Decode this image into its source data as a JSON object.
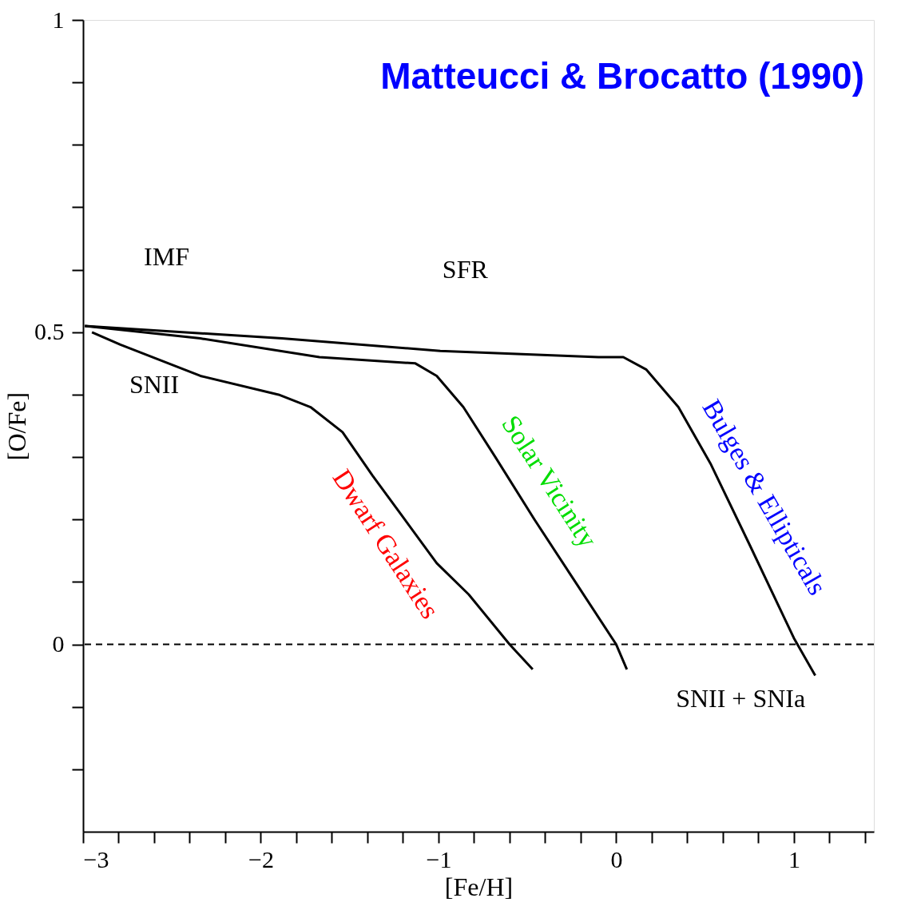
{
  "chart_data": {
    "type": "line",
    "title": "Matteucci & Brocatto (1990)",
    "xlabel": "[Fe/H]",
    "ylabel": "[O/Fe]",
    "xlim": [
      -3,
      1.45
    ],
    "ylim": [
      -0.3,
      1
    ],
    "xticks": [
      {
        "value": -3,
        "label": "−3"
      },
      {
        "value": -2.8,
        "label": null
      },
      {
        "value": -2.6,
        "label": null
      },
      {
        "value": -2.4,
        "label": null
      },
      {
        "value": -2.2,
        "label": null
      },
      {
        "value": -2,
        "label": "−2"
      },
      {
        "value": -1.8,
        "label": null
      },
      {
        "value": -1.6,
        "label": null
      },
      {
        "value": -1.4,
        "label": null
      },
      {
        "value": -1.2,
        "label": null
      },
      {
        "value": -1,
        "label": "−1"
      },
      {
        "value": -0.8,
        "label": null
      },
      {
        "value": -0.6,
        "label": null
      },
      {
        "value": -0.4,
        "label": null
      },
      {
        "value": -0.2,
        "label": null
      },
      {
        "value": 0,
        "label": "0"
      },
      {
        "value": 0.2,
        "label": null
      },
      {
        "value": 0.4,
        "label": null
      },
      {
        "value": 0.6,
        "label": null
      },
      {
        "value": 0.8,
        "label": null
      },
      {
        "value": 1,
        "label": "1"
      },
      {
        "value": 1.2,
        "label": null
      },
      {
        "value": 1.4,
        "label": null
      }
    ],
    "yticks": [
      {
        "value": -0.2,
        "label": null
      },
      {
        "value": -0.1,
        "label": null
      },
      0,
      {
        "value": 0.1,
        "label": null
      },
      {
        "value": 0.2,
        "label": null
      },
      {
        "value": 0.3,
        "label": null
      },
      {
        "value": 0.4,
        "label": null
      },
      0.5,
      {
        "value": 0.6,
        "label": null
      },
      {
        "value": 0.7,
        "label": null
      },
      {
        "value": 0.8,
        "label": null
      },
      {
        "value": 0.9,
        "label": null
      },
      1
    ],
    "grid": false,
    "legend": false,
    "marker": "none",
    "line_style": "solid",
    "series": [
      {
        "name": "Dwarf Galaxies",
        "color": "#000000",
        "x": [
          -2.95,
          -2.79,
          -2.34,
          -1.9,
          -1.72,
          -1.54,
          -1.37,
          -1.19,
          -1.01,
          -0.83,
          -0.6,
          -0.47
        ],
        "values": [
          0.5,
          0.48,
          0.43,
          0.4,
          0.38,
          0.34,
          0.27,
          0.2,
          0.13,
          0.08,
          0.0,
          -0.04
        ]
      },
      {
        "name": "Solar Vicinity",
        "color": "#000000",
        "x": [
          -2.99,
          -2.34,
          -1.67,
          -1.13,
          -1.01,
          -0.86,
          -0.68,
          -0.46,
          -0.23,
          0.0,
          0.06
        ],
        "values": [
          0.51,
          0.49,
          0.46,
          0.45,
          0.43,
          0.38,
          0.3,
          0.2,
          0.1,
          0.0,
          -0.04
        ]
      },
      {
        "name": "Bulges & Ellipticals",
        "color": "#000000",
        "x": [
          -2.99,
          -1.88,
          -0.99,
          -0.1,
          0.04,
          0.17,
          0.35,
          0.53,
          0.75,
          1.0,
          1.12
        ],
        "values": [
          0.51,
          0.49,
          0.47,
          0.46,
          0.46,
          0.44,
          0.38,
          0.29,
          0.16,
          0.01,
          -0.05
        ]
      }
    ],
    "ref_lines": [
      {
        "axis": "y",
        "value": 0,
        "line_style": "dashed",
        "color": "#000000"
      }
    ],
    "annotations": [
      "SNII",
      "SNII + SNIa",
      "IMF",
      "SFR"
    ]
  }
}
